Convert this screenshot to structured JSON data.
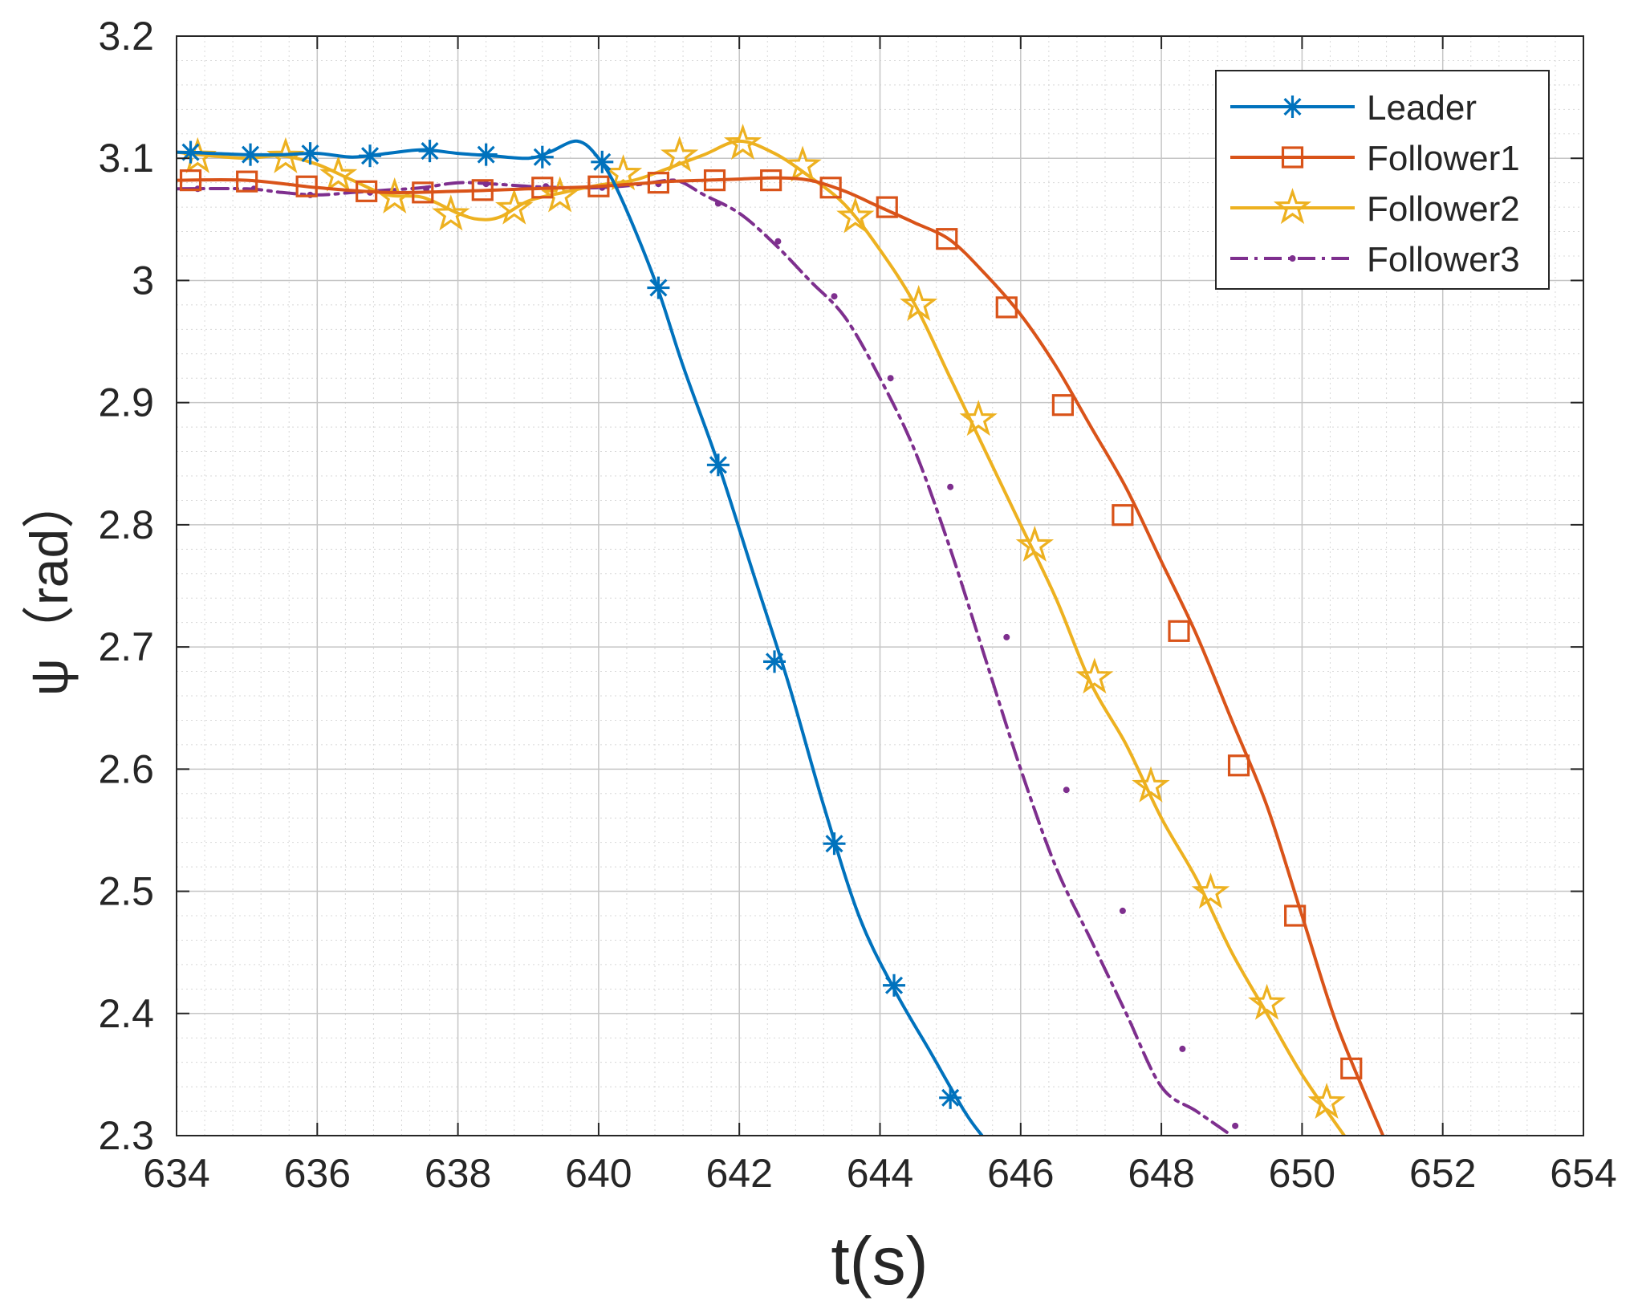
{
  "chart_data": {
    "type": "line",
    "title": "",
    "xlabel": "t(s)",
    "ylabel": "ψ（rad）",
    "xlim": [
      634,
      654
    ],
    "ylim": [
      2.3,
      3.2
    ],
    "xticks": [
      634,
      636,
      638,
      640,
      642,
      644,
      646,
      648,
      650,
      652,
      654
    ],
    "xtick_labels": [
      "634",
      "636",
      "638",
      "640",
      "642",
      "644",
      "646",
      "648",
      "650",
      "652",
      "654"
    ],
    "yticks": [
      2.3,
      2.4,
      2.5,
      2.6,
      2.7,
      2.8,
      2.9,
      3.0,
      3.1,
      3.2
    ],
    "ytick_labels": [
      "2.3",
      "2.4",
      "2.5",
      "2.6",
      "2.7",
      "2.8",
      "2.9",
      "3",
      "3.1",
      "3.2"
    ],
    "grid": true,
    "minor_grid": true,
    "legend_position": "top-right",
    "series": [
      {
        "name": "Leader",
        "color": "#0072BD",
        "marker": "asterisk",
        "dash": "solid",
        "x": [
          634.0,
          634.5,
          635.0,
          635.5,
          636.0,
          636.5,
          637.0,
          637.5,
          638.0,
          638.5,
          639.0,
          639.3,
          639.7,
          640.0,
          640.3,
          640.8,
          641.2,
          641.7,
          642.2,
          642.7,
          643.2,
          643.7,
          644.2,
          644.7,
          645.2,
          645.45
        ],
        "y": [
          3.105,
          3.104,
          3.103,
          3.103,
          3.104,
          3.101,
          3.104,
          3.107,
          3.104,
          3.102,
          3.1,
          3.105,
          3.114,
          3.1,
          3.07,
          3.0,
          2.93,
          2.85,
          2.76,
          2.67,
          2.57,
          2.48,
          2.42,
          2.37,
          2.32,
          2.3
        ],
        "marker_x": [
          634.2,
          635.05,
          635.9,
          636.75,
          637.6,
          638.4,
          639.2,
          640.05,
          640.85,
          641.7,
          642.5,
          643.35,
          644.2,
          645.0
        ],
        "marker_y": [
          3.105,
          3.103,
          3.104,
          3.102,
          3.106,
          3.103,
          3.101,
          3.097,
          2.994,
          2.849,
          2.688,
          2.539,
          2.423,
          2.331
        ]
      },
      {
        "name": "Follower1",
        "color": "#D95319",
        "marker": "square",
        "dash": "solid",
        "x": [
          634.0,
          635.0,
          636.0,
          637.0,
          638.0,
          639.0,
          640.0,
          641.0,
          641.5,
          642.0,
          642.5,
          643.0,
          643.5,
          644.0,
          644.5,
          645.0,
          645.5,
          646.0,
          646.5,
          647.0,
          647.5,
          648.0,
          648.5,
          649.0,
          649.5,
          650.0,
          650.5,
          651.15
        ],
        "y": [
          3.082,
          3.082,
          3.076,
          3.072,
          3.073,
          3.075,
          3.077,
          3.081,
          3.082,
          3.083,
          3.084,
          3.082,
          3.073,
          3.06,
          3.047,
          3.033,
          3.005,
          2.972,
          2.93,
          2.88,
          2.83,
          2.77,
          2.71,
          2.64,
          2.57,
          2.48,
          2.39,
          2.3
        ],
        "marker_x": [
          634.2,
          635.0,
          635.85,
          636.7,
          637.5,
          638.35,
          639.2,
          640.0,
          640.85,
          641.65,
          642.45,
          643.3,
          644.1,
          644.95,
          645.8,
          646.6,
          647.45,
          648.25,
          649.1,
          649.9,
          650.7
        ],
        "marker_y": [
          3.082,
          3.081,
          3.077,
          3.073,
          3.072,
          3.074,
          3.076,
          3.077,
          3.08,
          3.082,
          3.082,
          3.076,
          3.06,
          3.034,
          2.978,
          2.898,
          2.808,
          2.713,
          2.603,
          2.48,
          2.355
        ]
      },
      {
        "name": "Follower2",
        "color": "#EDB120",
        "marker": "pentagram",
        "dash": "solid",
        "x": [
          634.0,
          634.5,
          635.0,
          635.5,
          636.0,
          636.5,
          637.0,
          637.5,
          638.0,
          638.3,
          638.6,
          639.0,
          639.5,
          640.0,
          640.5,
          641.0,
          641.5,
          642.0,
          642.5,
          643.0,
          643.5,
          644.0,
          644.5,
          645.0,
          645.5,
          646.0,
          646.5,
          647.0,
          647.5,
          648.0,
          648.5,
          649.0,
          649.5,
          650.0,
          650.6
        ],
        "y": [
          3.105,
          3.102,
          3.1,
          3.102,
          3.095,
          3.082,
          3.07,
          3.068,
          3.055,
          3.05,
          3.052,
          3.065,
          3.072,
          3.078,
          3.082,
          3.092,
          3.103,
          3.114,
          3.104,
          3.085,
          3.062,
          3.025,
          2.98,
          2.92,
          2.86,
          2.8,
          2.74,
          2.67,
          2.62,
          2.56,
          2.51,
          2.45,
          2.4,
          2.35,
          2.3
        ],
        "marker_x": [
          634.3,
          635.55,
          636.3,
          637.1,
          637.9,
          638.8,
          639.45,
          640.35,
          641.15,
          642.05,
          642.9,
          643.65,
          644.55,
          645.4,
          646.2,
          647.05,
          647.85,
          648.7,
          649.5,
          650.35
        ],
        "marker_y": [
          3.101,
          3.101,
          3.086,
          3.068,
          3.054,
          3.059,
          3.069,
          3.087,
          3.102,
          3.112,
          3.094,
          3.052,
          2.98,
          2.886,
          2.783,
          2.675,
          2.586,
          2.499,
          2.408,
          2.327
        ]
      },
      {
        "name": "Follower3",
        "color": "#7E2F8E",
        "marker": "point",
        "dash": "dashdot",
        "x": [
          634.0,
          635.0,
          635.5,
          636.0,
          636.5,
          637.0,
          637.5,
          638.0,
          638.5,
          639.0,
          639.5,
          640.0,
          640.5,
          641.0,
          641.2,
          641.5,
          642.0,
          642.5,
          643.0,
          643.5,
          644.0,
          644.5,
          645.0,
          645.5,
          646.0,
          646.5,
          647.0,
          647.5,
          648.0,
          648.5,
          649.0
        ],
        "y": [
          3.075,
          3.075,
          3.072,
          3.07,
          3.072,
          3.074,
          3.076,
          3.08,
          3.079,
          3.077,
          3.076,
          3.076,
          3.078,
          3.082,
          3.08,
          3.07,
          3.055,
          3.03,
          3.0,
          2.97,
          2.92,
          2.86,
          2.78,
          2.69,
          2.6,
          2.52,
          2.46,
          2.4,
          2.34,
          2.32,
          2.3
        ],
        "marker_x": [
          634.3,
          635.1,
          635.9,
          636.75,
          637.55,
          638.4,
          639.25,
          640.05,
          640.85,
          641.7,
          642.55,
          643.35,
          644.15,
          645.0,
          645.8,
          646.65,
          647.45,
          648.3,
          649.05
        ],
        "marker_y": [
          3.075,
          3.075,
          3.07,
          3.072,
          3.075,
          3.079,
          3.077,
          3.076,
          3.079,
          3.063,
          3.032,
          2.987,
          2.92,
          2.831,
          2.708,
          2.583,
          2.484,
          2.371,
          2.308
        ]
      }
    ]
  }
}
